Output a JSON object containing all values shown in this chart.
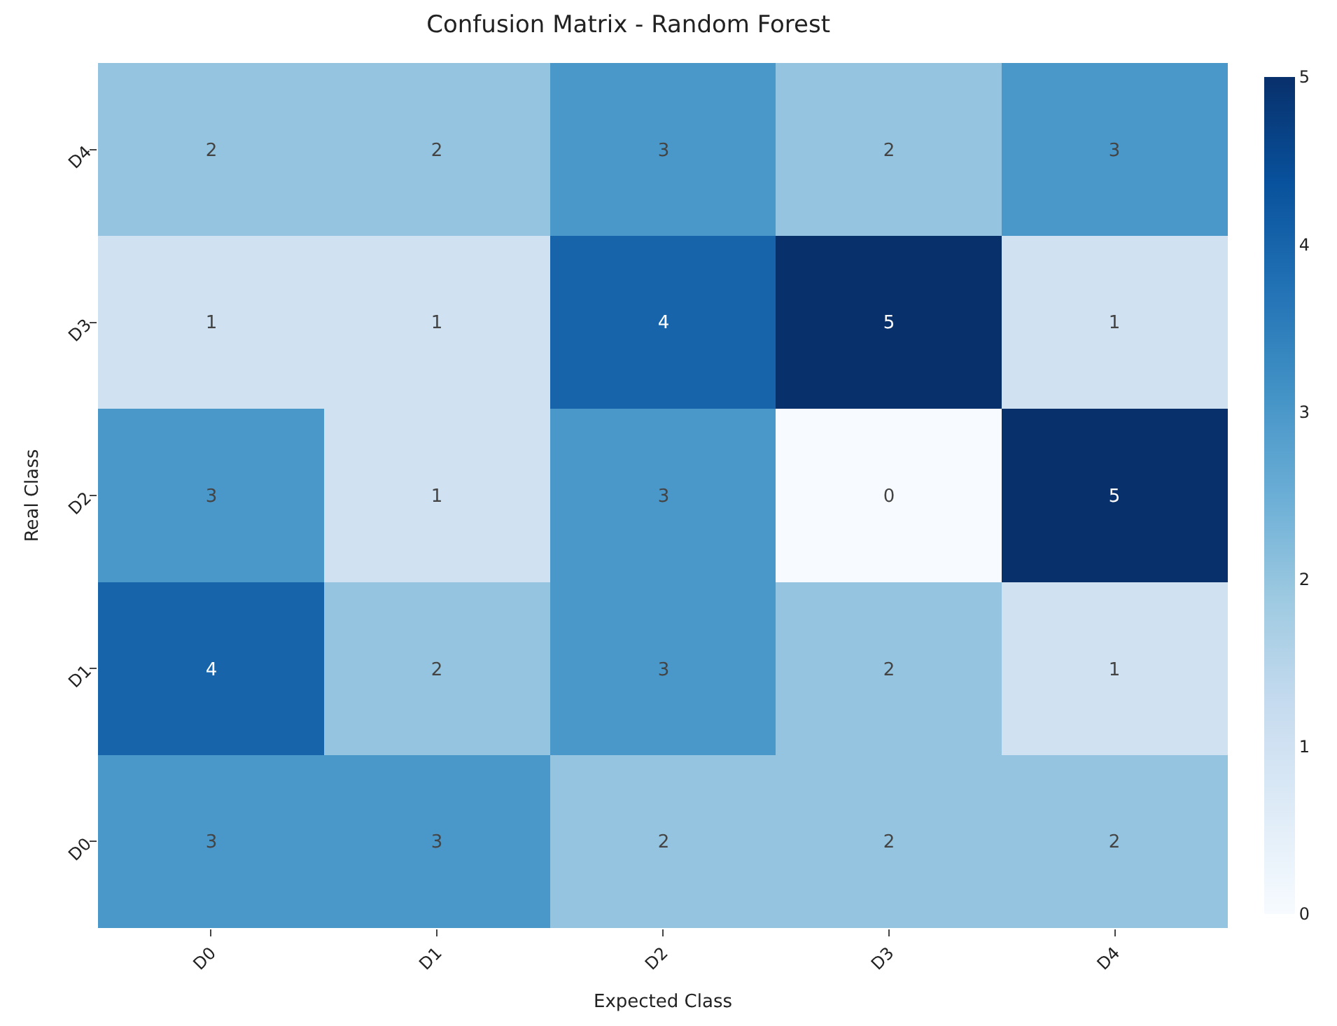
{
  "chart_data": {
    "type": "heatmap",
    "title": "Confusion Matrix - Random Forest",
    "xlabel": "Expected Class",
    "ylabel": "Real Class",
    "categories": [
      "D0",
      "D1",
      "D2",
      "D3",
      "D4"
    ],
    "y_categories": [
      "D4",
      "D3",
      "D2",
      "D1",
      "D0"
    ],
    "cells": [
      [
        2,
        2,
        3,
        2,
        3
      ],
      [
        1,
        1,
        4,
        5,
        1
      ],
      [
        3,
        1,
        3,
        0,
        5
      ],
      [
        4,
        2,
        3,
        2,
        1
      ],
      [
        3,
        3,
        2,
        2,
        2
      ]
    ],
    "clim": [
      0,
      5
    ],
    "cticks": [
      0,
      1,
      2,
      3,
      4,
      5
    ],
    "data_labels": true
  }
}
